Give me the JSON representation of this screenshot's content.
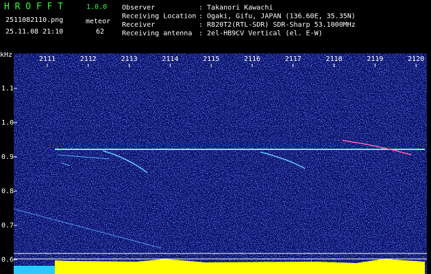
{
  "header": {
    "app_name": "H R O F F T",
    "version": "1.0.0",
    "filename": "2511082110.png",
    "datetime": "25.11.08 21:10",
    "mode": "meteor",
    "count": "62",
    "info": [
      {
        "label": "Observer",
        "value": ": Takanori Kawachi"
      },
      {
        "label": "Receiving Location",
        "value": ": Ogaki, Gifu, JAPAN (136.60E, 35.35N)"
      },
      {
        "label": "Receiver",
        "value": ": R820T2(RTL-SDR) SDR-Sharp 53.1000MHz"
      },
      {
        "label": "Receiving antenna",
        "value": ": 2el-HB9CV Vertical (el. E-W)"
      }
    ]
  },
  "axis": {
    "unit": "kHz",
    "x_labels": [
      "2111",
      "2112",
      "2113",
      "2114",
      "2115",
      "2116",
      "2117",
      "2118",
      "2119",
      "2120"
    ],
    "y_labels": [
      "1.1",
      "1.0",
      "0.9",
      "0.8",
      "0.7",
      "0.6"
    ]
  }
}
